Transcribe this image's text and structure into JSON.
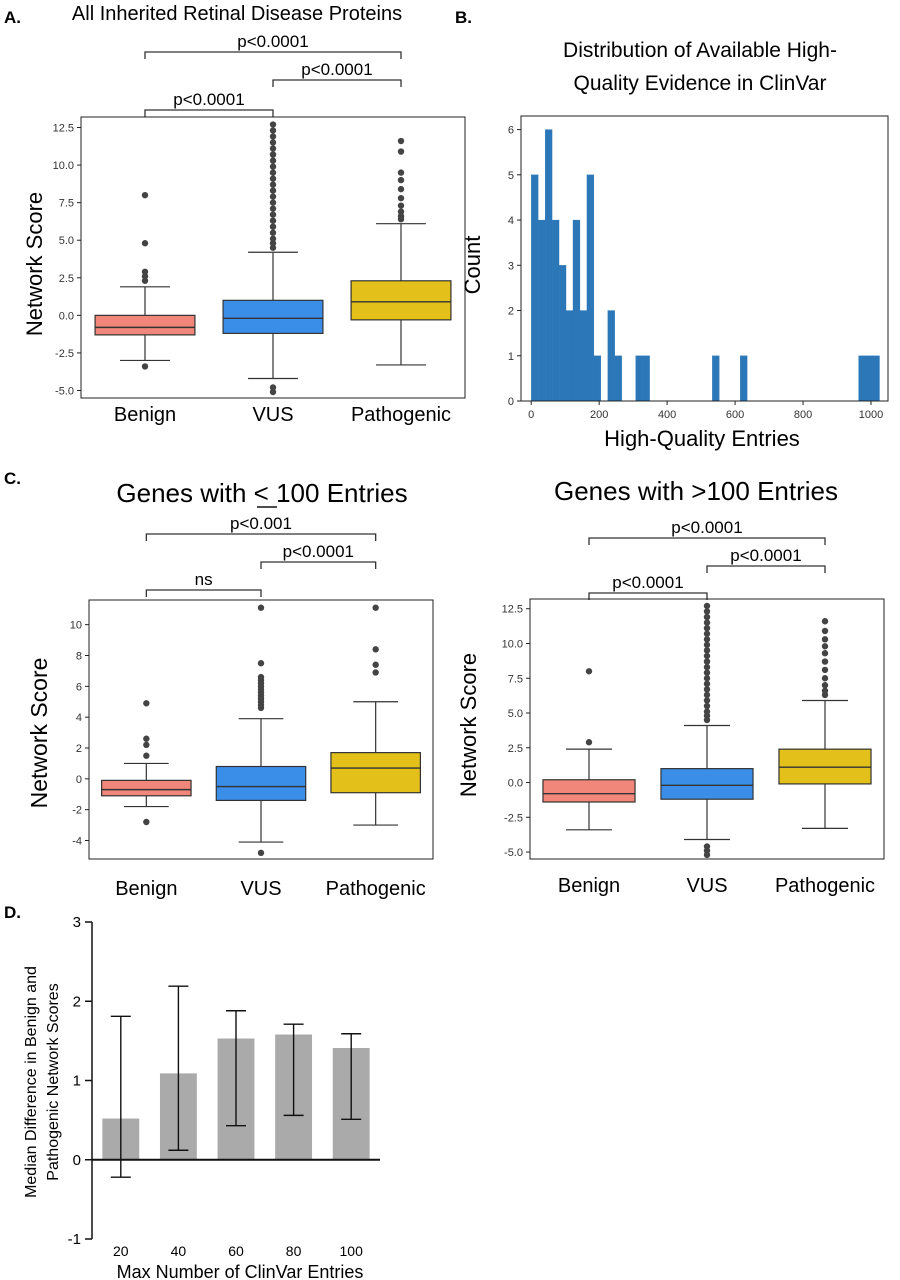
{
  "colors": {
    "benign": "#f0877a",
    "vus": "#3b8ee8",
    "pathogenic": "#e3c11a",
    "hist": "#2b77b8",
    "bar": "#aaaaaa",
    "line": "#333333",
    "outlier": "#444444"
  },
  "chart_data": [
    {
      "panel": "A.",
      "type": "box",
      "title": "All Inherited Retinal Disease Proteins",
      "xlabel": "",
      "ylabel": "Network Score",
      "categories": [
        "Benign",
        "VUS",
        "Pathogenic"
      ],
      "yticks": [
        "12.5",
        "10.0",
        "7.5",
        "5.0",
        "2.5",
        "0.0",
        "-2.5",
        "-5.0"
      ],
      "ylim": [
        -5.5,
        13.2
      ],
      "boxes": [
        {
          "category": "Benign",
          "min": -3.0,
          "q1": -1.3,
          "median": -0.8,
          "q3": 0.0,
          "max": 1.9,
          "outliers": [
            8.0,
            4.8,
            2.9,
            2.6,
            2.3,
            -3.4
          ]
        },
        {
          "category": "VUS",
          "min": -4.2,
          "q1": -1.2,
          "median": -0.2,
          "q3": 1.0,
          "max": 4.2,
          "outliers": [
            12.7,
            12.3,
            11.9,
            11.5,
            11.1,
            10.7,
            10.3,
            9.9,
            9.5,
            9.1,
            8.7,
            8.3,
            7.9,
            7.5,
            7.1,
            6.7,
            6.3,
            5.9,
            5.5,
            5.1,
            4.8,
            4.5,
            -4.8,
            -5.1
          ]
        },
        {
          "category": "Pathogenic",
          "min": -3.3,
          "q1": -0.3,
          "median": 0.9,
          "q3": 2.3,
          "max": 6.1,
          "outliers": [
            11.6,
            10.9,
            9.5,
            9.0,
            8.4,
            7.8,
            7.3,
            6.9,
            6.6,
            6.4
          ]
        }
      ],
      "brackets": [
        {
          "from": "Benign",
          "to": "Pathogenic",
          "label": "p<0.0001"
        },
        {
          "from": "VUS",
          "to": "Pathogenic",
          "label": "p<0.0001"
        },
        {
          "from": "Benign",
          "to": "VUS",
          "label": "p<0.0001"
        }
      ]
    },
    {
      "panel": "B.",
      "type": "histogram",
      "title_lines": [
        "Distribution of Available High-",
        "Quality Evidence in ClinVar"
      ],
      "xlabel": "High-Quality Entries",
      "ylabel": "Count",
      "xticks": [
        0,
        200,
        400,
        600,
        800,
        1000
      ],
      "yticks": [
        0,
        1,
        2,
        3,
        4,
        5,
        6
      ],
      "xlim": [
        -30,
        1050
      ],
      "ylim": [
        0,
        6.3
      ],
      "bin_width": 20.5,
      "bins": [
        {
          "x0": 0,
          "count": 5
        },
        {
          "x0": 20.5,
          "count": 4
        },
        {
          "x0": 41,
          "count": 6
        },
        {
          "x0": 61.5,
          "count": 4
        },
        {
          "x0": 82,
          "count": 3
        },
        {
          "x0": 102.5,
          "count": 2
        },
        {
          "x0": 123,
          "count": 4
        },
        {
          "x0": 143.5,
          "count": 2
        },
        {
          "x0": 164,
          "count": 5
        },
        {
          "x0": 184.5,
          "count": 1
        },
        {
          "x0": 225.5,
          "count": 2
        },
        {
          "x0": 246,
          "count": 1
        },
        {
          "x0": 307.5,
          "count": 1
        },
        {
          "x0": 328,
          "count": 1
        },
        {
          "x0": 533,
          "count": 1
        },
        {
          "x0": 615,
          "count": 1
        },
        {
          "x0": 963.5,
          "count": 1
        },
        {
          "x0": 984,
          "count": 1
        },
        {
          "x0": 1004.5,
          "count": 1
        }
      ]
    },
    {
      "panel": "C.",
      "type": "box",
      "title": "Genes with < 100 Entries",
      "xlabel": "",
      "ylabel": "Network Score",
      "categories": [
        "Benign",
        "VUS",
        "Pathogenic"
      ],
      "yticks": [
        "10",
        "8",
        "6",
        "4",
        "2",
        "0",
        "-2",
        "-4"
      ],
      "ylim": [
        -5.2,
        11.6
      ],
      "boxes": [
        {
          "category": "Benign",
          "min": -1.8,
          "q1": -1.1,
          "median": -0.7,
          "q3": -0.1,
          "max": 1.0,
          "outliers": [
            4.9,
            2.6,
            2.2,
            1.5,
            -2.8
          ]
        },
        {
          "category": "VUS",
          "min": -4.1,
          "q1": -1.4,
          "median": -0.5,
          "q3": 0.8,
          "max": 3.9,
          "outliers": [
            11.1,
            7.5,
            6.6,
            6.4,
            6.2,
            6.0,
            5.8,
            5.6,
            5.4,
            5.2,
            5.0,
            4.8,
            4.6,
            -4.8
          ]
        },
        {
          "category": "Pathogenic",
          "min": -3.0,
          "q1": -0.9,
          "median": 0.7,
          "q3": 1.7,
          "max": 5.0,
          "outliers": [
            11.1,
            8.4,
            7.4,
            6.9
          ]
        }
      ],
      "brackets": [
        {
          "from": "Benign",
          "to": "Pathogenic",
          "label": "p<0.001"
        },
        {
          "from": "VUS",
          "to": "Pathogenic",
          "label": "p<0.0001"
        },
        {
          "from": "Benign",
          "to": "VUS",
          "label": "ns"
        }
      ]
    },
    {
      "panel": "",
      "type": "box",
      "title": "Genes with >100 Entries",
      "xlabel": "",
      "ylabel": "Network Score",
      "categories": [
        "Benign",
        "VUS",
        "Pathogenic"
      ],
      "yticks": [
        "12.5",
        "10.0",
        "7.5",
        "5.0",
        "2.5",
        "0.0",
        "-2.5",
        "-5.0"
      ],
      "ylim": [
        -5.5,
        13.2
      ],
      "boxes": [
        {
          "category": "Benign",
          "min": -3.4,
          "q1": -1.4,
          "median": -0.8,
          "q3": 0.2,
          "max": 2.4,
          "outliers": [
            8.0,
            2.9
          ]
        },
        {
          "category": "VUS",
          "min": -4.1,
          "q1": -1.2,
          "median": -0.2,
          "q3": 1.0,
          "max": 4.1,
          "outliers": [
            12.7,
            12.3,
            11.9,
            11.5,
            11.1,
            10.7,
            10.3,
            9.9,
            9.5,
            9.1,
            8.7,
            8.3,
            7.9,
            7.5,
            7.1,
            6.7,
            6.3,
            5.9,
            5.5,
            5.1,
            4.8,
            4.5,
            -4.6,
            -4.9,
            -5.2
          ]
        },
        {
          "category": "Pathogenic",
          "min": -3.3,
          "q1": -0.1,
          "median": 1.1,
          "q3": 2.4,
          "max": 5.9,
          "outliers": [
            11.6,
            10.9,
            10.3,
            9.8,
            9.3,
            8.7,
            8.1,
            7.5,
            7.0,
            6.6,
            6.3
          ]
        }
      ],
      "brackets": [
        {
          "from": "Benign",
          "to": "Pathogenic",
          "label": "p<0.0001"
        },
        {
          "from": "VUS",
          "to": "Pathogenic",
          "label": "p<0.0001"
        },
        {
          "from": "Benign",
          "to": "VUS",
          "label": "p<0.0001"
        }
      ]
    },
    {
      "panel": "D.",
      "type": "bar",
      "title": "",
      "xlabel": "Max Number of ClinVar Entries",
      "ylabel_lines": [
        "Median Difference in Benign and",
        "Pathogenic Network Scores"
      ],
      "categories": [
        "20",
        "40",
        "60",
        "80",
        "100"
      ],
      "values": [
        0.52,
        1.09,
        1.53,
        1.58,
        1.41
      ],
      "error_low": [
        -0.22,
        0.12,
        0.43,
        0.56,
        0.51
      ],
      "error_high": [
        1.81,
        2.19,
        1.88,
        1.71,
        1.59
      ],
      "yticks": [
        -1,
        0,
        1,
        2,
        3
      ],
      "ylim": [
        -1,
        3
      ]
    }
  ]
}
